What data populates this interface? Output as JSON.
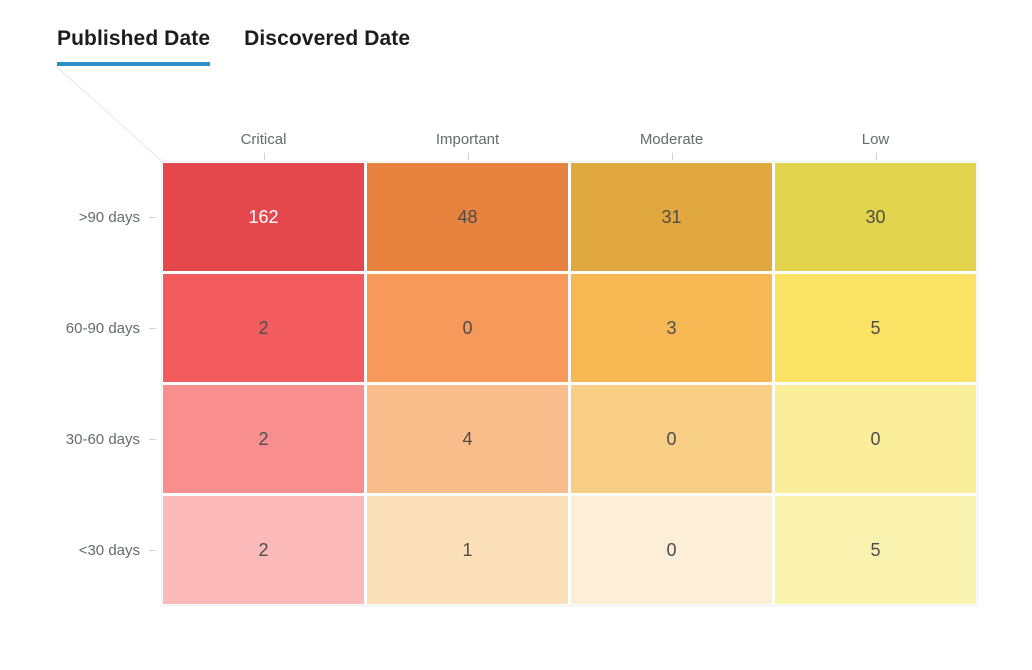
{
  "tabs": {
    "items": [
      {
        "label": "Published Date",
        "active": true
      },
      {
        "label": "Discovered Date",
        "active": false
      }
    ],
    "active_underline_color": "#2a91c8"
  },
  "chart_data": {
    "type": "heatmap",
    "title": "",
    "columns": [
      "Critical",
      "Important",
      "Moderate",
      "Low"
    ],
    "rows": [
      ">90 days",
      "60-90 days",
      "30-60 days",
      "<30 days"
    ],
    "values": [
      [
        162,
        48,
        31,
        30
      ],
      [
        2,
        0,
        3,
        5
      ],
      [
        2,
        4,
        0,
        0
      ],
      [
        2,
        1,
        0,
        5
      ]
    ],
    "cell_colors": [
      [
        "#e4484d",
        "#e8823f",
        "#e0a83e",
        "#e2d44c"
      ],
      [
        "#f25c5f",
        "#f8995c",
        "#f7b854",
        "#fae364"
      ],
      [
        "#f98e8f",
        "#fabd8c",
        "#f8ce85",
        "#fbee9b"
      ],
      [
        "#fbb9ba",
        "#fce0b9",
        "#fdeed8",
        "#faf3b0"
      ]
    ],
    "value_text_colors": [
      [
        "#ffffff",
        "#4d4d4d",
        "#4d4d4d",
        "#4d4d4d"
      ],
      [
        "#4d4d4d",
        "#4d4d4d",
        "#4d4d4d",
        "#4d4d4d"
      ],
      [
        "#4d4d4d",
        "#4d4d4d",
        "#4d4d4d",
        "#4d4d4d"
      ],
      [
        "#4d4d4d",
        "#4d4d4d",
        "#4d4d4d",
        "#4d4d4d"
      ]
    ],
    "header_text_color": "#666a6e",
    "legend_position": "none",
    "grid": false
  }
}
